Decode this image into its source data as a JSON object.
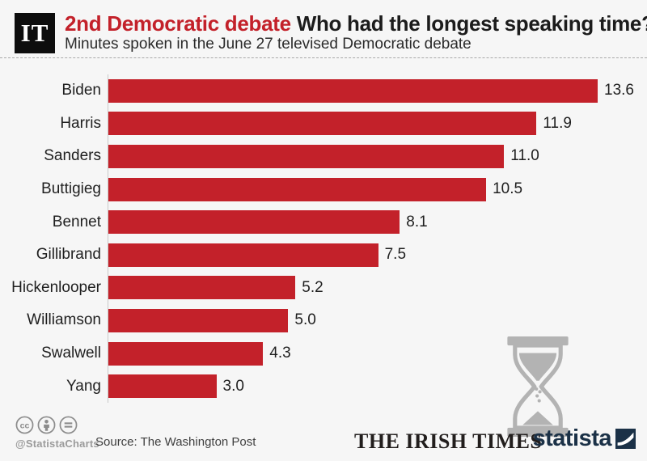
{
  "page": {
    "background": "#f6f6f6"
  },
  "header": {
    "logo_text": "IT",
    "title_highlight": "2nd Democratic debate",
    "title_rest": "Who had the longest speaking time?",
    "subtitle": "Minutes spoken in the June 27 televised Democratic debate",
    "accent_color": "#c3212a"
  },
  "chart_data": {
    "type": "bar",
    "orientation": "horizontal",
    "title": "2nd Democratic debate Who had the longest speaking time?",
    "subtitle": "Minutes spoken in the June 27 televised Democratic debate",
    "categories": [
      "Biden",
      "Harris",
      "Sanders",
      "Buttigieg",
      "Bennet",
      "Gillibrand",
      "Hickenlooper",
      "Williamson",
      "Swalwell",
      "Yang"
    ],
    "values": [
      13.6,
      11.9,
      11.0,
      10.5,
      8.1,
      7.5,
      5.2,
      5.0,
      4.3,
      3.0
    ],
    "value_labels": [
      "13.6",
      "11.9",
      "11.0",
      "10.5",
      "8.1",
      "7.5",
      "5.2",
      "5.0",
      "4.3",
      "3.0"
    ],
    "unit": "minutes",
    "bar_color": "#c3212a",
    "xlim": [
      0,
      14.2
    ],
    "grid": false,
    "legend": false
  },
  "decoration": {
    "hourglass_icon": "hourglass-icon",
    "hourglass_color": "#b3b3b3"
  },
  "footer": {
    "license_icons": [
      "cc-icon",
      "attribution-icon",
      "equals-icon"
    ],
    "credit": "@StatistaCharts",
    "source": "Source: The Washington Post",
    "publisher": "THE IRISH TIMES",
    "brand": "statista",
    "brand_color": "#1b3147"
  }
}
